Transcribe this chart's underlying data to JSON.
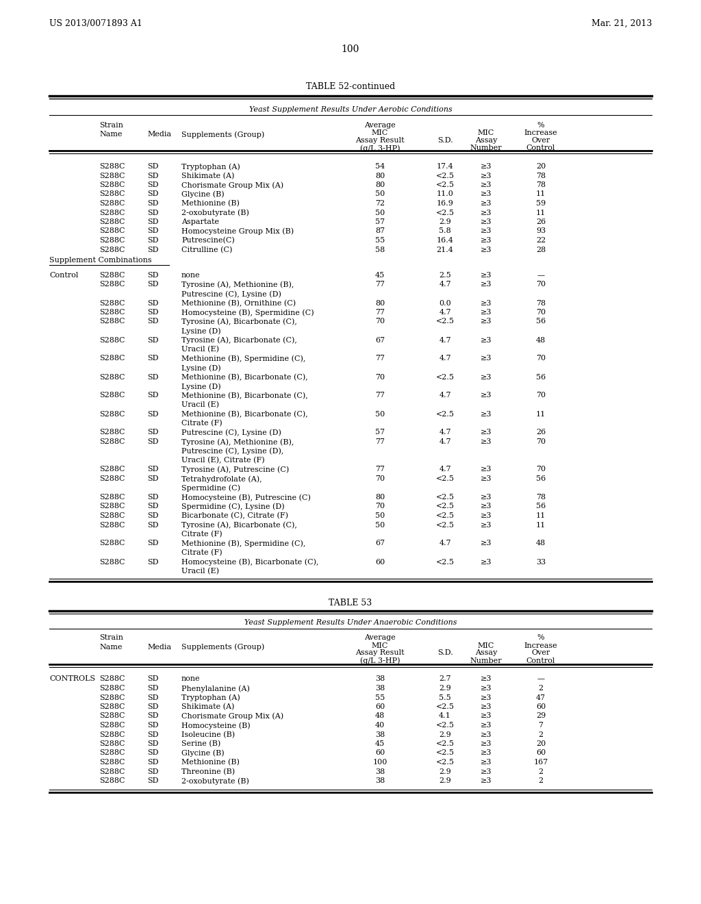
{
  "header_left": "US 2013/0071893 A1",
  "header_right": "Mar. 21, 2013",
  "page_number": "100",
  "table52_title": "TABLE 52-continued",
  "table52_subtitle": "Yeast Supplement Results Under Aerobic Conditions",
  "table53_title": "TABLE 53",
  "table53_subtitle": "Yeast Supplement Results Under Anaerobic Conditions",
  "table52_individual": [
    [
      "S288C",
      "SD",
      "Tryptophan (A)",
      "54",
      "17.4",
      "≥3",
      "20"
    ],
    [
      "S288C",
      "SD",
      "Shikimate (A)",
      "80",
      "<2.5",
      "≥3",
      "78"
    ],
    [
      "S288C",
      "SD",
      "Chorismate Group Mix (A)",
      "80",
      "<2.5",
      "≥3",
      "78"
    ],
    [
      "S288C",
      "SD",
      "Glycine (B)",
      "50",
      "11.0",
      "≥3",
      "11"
    ],
    [
      "S288C",
      "SD",
      "Methionine (B)",
      "72",
      "16.9",
      "≥3",
      "59"
    ],
    [
      "S288C",
      "SD",
      "2-oxobutyrate (B)",
      "50",
      "<2.5",
      "≥3",
      "11"
    ],
    [
      "S288C",
      "SD",
      "Aspartate",
      "57",
      "2.9",
      "≥3",
      "26"
    ],
    [
      "S288C",
      "SD",
      "Homocysteine Group Mix (B)",
      "87",
      "5.8",
      "≥3",
      "93"
    ],
    [
      "S288C",
      "SD",
      "Putrescine(C)",
      "55",
      "16.4",
      "≥3",
      "22"
    ],
    [
      "S288C",
      "SD",
      "Citrulline (C)",
      "58",
      "21.4",
      "≥3",
      "28"
    ]
  ],
  "table52_combos": [
    [
      "Control",
      "S288C",
      "SD",
      "none",
      "45",
      "2.5",
      "≥3",
      "—",
      1
    ],
    [
      "",
      "S288C",
      "SD",
      "Tyrosine (A), Methionine (B),",
      "77",
      "4.7",
      "≥3",
      "70",
      1
    ],
    [
      "",
      "",
      "",
      "Putrescine (C), Lysine (D)",
      "",
      "",
      "",
      "",
      0
    ],
    [
      "",
      "S288C",
      "SD",
      "Methionine (B), Ornithine (C)",
      "80",
      "0.0",
      "≥3",
      "78",
      1
    ],
    [
      "",
      "S288C",
      "SD",
      "Homocysteine (B), Spermidine (C)",
      "77",
      "4.7",
      "≥3",
      "70",
      1
    ],
    [
      "",
      "S288C",
      "SD",
      "Tyrosine (A), Bicarbonate (C),",
      "70",
      "<2.5",
      "≥3",
      "56",
      1
    ],
    [
      "",
      "",
      "",
      "Lysine (D)",
      "",
      "",
      "",
      "",
      0
    ],
    [
      "",
      "S288C",
      "SD",
      "Tyrosine (A), Bicarbonate (C),",
      "67",
      "4.7",
      "≥3",
      "48",
      1
    ],
    [
      "",
      "",
      "",
      "Uracil (E)",
      "",
      "",
      "",
      "",
      0
    ],
    [
      "",
      "S288C",
      "SD",
      "Methionine (B), Spermidine (C),",
      "77",
      "4.7",
      "≥3",
      "70",
      1
    ],
    [
      "",
      "",
      "",
      "Lysine (D)",
      "",
      "",
      "",
      "",
      0
    ],
    [
      "",
      "S288C",
      "SD",
      "Methionine (B), Bicarbonate (C),",
      "70",
      "<2.5",
      "≥3",
      "56",
      1
    ],
    [
      "",
      "",
      "",
      "Lysine (D)",
      "",
      "",
      "",
      "",
      0
    ],
    [
      "",
      "S288C",
      "SD",
      "Methionine (B), Bicarbonate (C),",
      "77",
      "4.7",
      "≥3",
      "70",
      1
    ],
    [
      "",
      "",
      "",
      "Uracil (E)",
      "",
      "",
      "",
      "",
      0
    ],
    [
      "",
      "S288C",
      "SD",
      "Methionine (B), Bicarbonate (C),",
      "50",
      "<2.5",
      "≥3",
      "11",
      1
    ],
    [
      "",
      "",
      "",
      "Citrate (F)",
      "",
      "",
      "",
      "",
      0
    ],
    [
      "",
      "S288C",
      "SD",
      "Putrescine (C), Lysine (D)",
      "57",
      "4.7",
      "≥3",
      "26",
      1
    ],
    [
      "",
      "S288C",
      "SD",
      "Tyrosine (A), Methionine (B),",
      "77",
      "4.7",
      "≥3",
      "70",
      1
    ],
    [
      "",
      "",
      "",
      "Putrescine (C), Lysine (D),",
      "",
      "",
      "",
      "",
      0
    ],
    [
      "",
      "",
      "",
      "Uracil (E), Citrate (F)",
      "",
      "",
      "",
      "",
      0
    ],
    [
      "",
      "S288C",
      "SD",
      "Tyrosine (A), Putrescine (C)",
      "77",
      "4.7",
      "≥3",
      "70",
      1
    ],
    [
      "",
      "S288C",
      "SD",
      "Tetrahydrofolate (A),",
      "70",
      "<2.5",
      "≥3",
      "56",
      1
    ],
    [
      "",
      "",
      "",
      "Spermidine (C)",
      "",
      "",
      "",
      "",
      0
    ],
    [
      "",
      "S288C",
      "SD",
      "Homocysteine (B), Putrescine (C)",
      "80",
      "<2.5",
      "≥3",
      "78",
      1
    ],
    [
      "",
      "S288C",
      "SD",
      "Spermidine (C), Lysine (D)",
      "70",
      "<2.5",
      "≥3",
      "56",
      1
    ],
    [
      "",
      "S288C",
      "SD",
      "Bicarbonate (C), Citrate (F)",
      "50",
      "<2.5",
      "≥3",
      "11",
      1
    ],
    [
      "",
      "S288C",
      "SD",
      "Tyrosine (A), Bicarbonate (C),",
      "50",
      "<2.5",
      "≥3",
      "11",
      1
    ],
    [
      "",
      "",
      "",
      "Citrate (F)",
      "",
      "",
      "",
      "",
      0
    ],
    [
      "",
      "S288C",
      "SD",
      "Methionine (B), Spermidine (C),",
      "67",
      "4.7",
      "≥3",
      "48",
      1
    ],
    [
      "",
      "",
      "",
      "Citrate (F)",
      "",
      "",
      "",
      "",
      0
    ],
    [
      "",
      "S288C",
      "SD",
      "Homocysteine (B), Bicarbonate (C),",
      "60",
      "<2.5",
      "≥3",
      "33",
      1
    ],
    [
      "",
      "",
      "",
      "Uracil (E)",
      "",
      "",
      "",
      "",
      0
    ]
  ],
  "table53_rows": [
    [
      "CONTROLS",
      "S288C",
      "SD",
      "none",
      "38",
      "2.7",
      "≥3",
      "—"
    ],
    [
      "",
      "S288C",
      "SD",
      "Phenylalanine (A)",
      "38",
      "2.9",
      "≥3",
      "2"
    ],
    [
      "",
      "S288C",
      "SD",
      "Tryptophan (A)",
      "55",
      "5.5",
      "≥3",
      "47"
    ],
    [
      "",
      "S288C",
      "SD",
      "Shikimate (A)",
      "60",
      "<2.5",
      "≥3",
      "60"
    ],
    [
      "",
      "S288C",
      "SD",
      "Chorismate Group Mix (A)",
      "48",
      "4.1",
      "≥3",
      "29"
    ],
    [
      "",
      "S288C",
      "SD",
      "Homocysteine (B)",
      "40",
      "<2.5",
      "≥3",
      "7"
    ],
    [
      "",
      "S288C",
      "SD",
      "Isoleucine (B)",
      "38",
      "2.9",
      "≥3",
      "2"
    ],
    [
      "",
      "S288C",
      "SD",
      "Serine (B)",
      "45",
      "<2.5",
      "≥3",
      "20"
    ],
    [
      "",
      "S288C",
      "SD",
      "Glycine (B)",
      "60",
      "<2.5",
      "≥3",
      "60"
    ],
    [
      "",
      "S288C",
      "SD",
      "Methionine (B)",
      "100",
      "<2.5",
      "≥3",
      "167"
    ],
    [
      "",
      "S288C",
      "SD",
      "Threonine (B)",
      "38",
      "2.9",
      "≥3",
      "2"
    ],
    [
      "",
      "S288C",
      "SD",
      "2-oxobutyrate (B)",
      "38",
      "2.9",
      "≥3",
      "2"
    ]
  ]
}
